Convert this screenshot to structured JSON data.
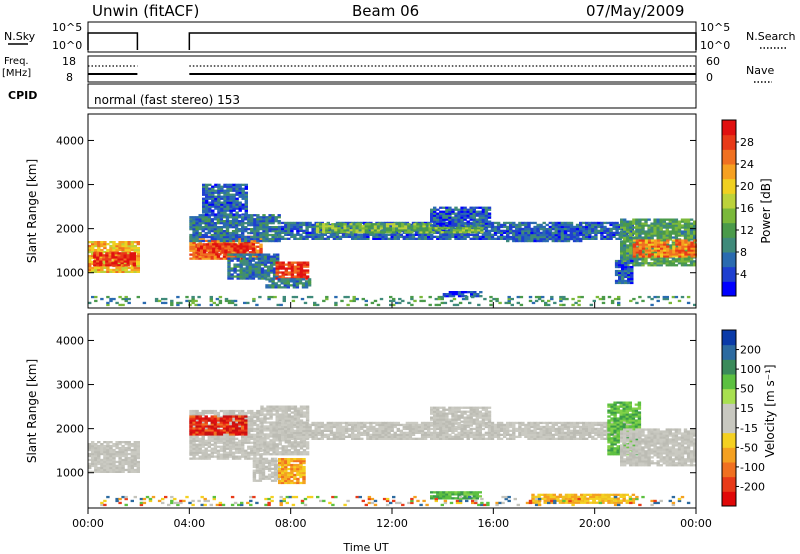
{
  "header": {
    "radar": "Unwin (fitACF)",
    "beam": "Beam 06",
    "date": "07/May/2009"
  },
  "panels": {
    "nsky": {
      "left_label": "N.Sky",
      "right_label": "N.Search",
      "left_ticks": [
        "10^5",
        "10^0"
      ],
      "right_ticks": [
        "10^5",
        "10^0"
      ]
    },
    "freq": {
      "left_label_line1": "Freq.",
      "left_label_line2": "[MHz]",
      "left_ticks": [
        "18",
        "8"
      ],
      "right_label": "Nave",
      "right_ticks": [
        "60",
        "0"
      ]
    },
    "cpid": {
      "label": "CPID",
      "mode_text": "normal (fast stereo) 153"
    }
  },
  "chart_data": [
    {
      "type": "heatmap",
      "panel": "power",
      "ylabel": "Slant Range [km]",
      "xlabel": "Time UT",
      "ylim": [
        200,
        4600
      ],
      "xlim": [
        0,
        24
      ],
      "y_ticks": [
        1000,
        2000,
        3000,
        4000
      ],
      "x_ticks": [
        "00:00",
        "04:00",
        "08:00",
        "12:00",
        "16:00",
        "20:00",
        "00:00"
      ],
      "colorbar": {
        "label": "Power [dB]",
        "ticks": [
          "4",
          "8",
          "12",
          "16",
          "20",
          "24",
          "28"
        ],
        "range": [
          0,
          30
        ],
        "colors": [
          "#0000ff",
          "#1e3fd0",
          "#2a6bb0",
          "#3f8a7a",
          "#4a9a4a",
          "#7ab83a",
          "#bcd23a",
          "#f0d020",
          "#f6a020",
          "#f07020",
          "#e83a18",
          "#e01010"
        ]
      },
      "regions": [
        {
          "t0": 0.0,
          "t1": 1.95,
          "r0": 1000,
          "r1": 1700,
          "v": 20
        },
        {
          "t0": 0.2,
          "t1": 1.8,
          "r0": 1150,
          "r1": 1450,
          "v": 27
        },
        {
          "t0": 4.0,
          "t1": 6.8,
          "r0": 1300,
          "r1": 1800,
          "v": 24
        },
        {
          "t0": 4.3,
          "t1": 6.5,
          "r0": 1400,
          "r1": 1650,
          "v": 27
        },
        {
          "t0": 4.0,
          "t1": 7.5,
          "r0": 1700,
          "r1": 2300,
          "v": 7
        },
        {
          "t0": 4.5,
          "t1": 6.2,
          "r0": 2300,
          "r1": 3000,
          "v": 5
        },
        {
          "t0": 5.5,
          "t1": 7.5,
          "r0": 850,
          "r1": 1400,
          "v": 7
        },
        {
          "t0": 7.4,
          "t1": 8.6,
          "r0": 850,
          "r1": 1250,
          "v": 27
        },
        {
          "t0": 7.0,
          "t1": 8.7,
          "r0": 650,
          "r1": 850,
          "v": 8
        },
        {
          "t0": 7.5,
          "t1": 21.5,
          "r0": 1750,
          "r1": 2150,
          "v": 6
        },
        {
          "t0": 9.0,
          "t1": 15.5,
          "r0": 1900,
          "r1": 2100,
          "v": 13
        },
        {
          "t0": 13.5,
          "t1": 15.8,
          "r0": 2050,
          "r1": 2500,
          "v": 5
        },
        {
          "t0": 16.5,
          "t1": 19.5,
          "r0": 1700,
          "r1": 2000,
          "v": 6
        },
        {
          "t0": 21.0,
          "t1": 24.0,
          "r0": 1150,
          "r1": 2200,
          "v": 11
        },
        {
          "t0": 21.5,
          "t1": 24.0,
          "r0": 1350,
          "r1": 1750,
          "v": 23
        },
        {
          "t0": 20.8,
          "t1": 21.5,
          "r0": 750,
          "r1": 1250,
          "v": 5
        },
        {
          "t0": 14.0,
          "t1": 15.5,
          "r0": 450,
          "r1": 550,
          "v": 4
        },
        {
          "t0": 0.0,
          "t1": 24.0,
          "r0": 250,
          "r1": 450,
          "v": 10,
          "sparse": true
        }
      ]
    },
    {
      "type": "heatmap",
      "panel": "velocity",
      "ylabel": "Slant Range [km]",
      "xlabel": "Time UT",
      "ylim": [
        200,
        4600
      ],
      "xlim": [
        0,
        24
      ],
      "y_ticks": [
        1000,
        2000,
        3000,
        4000
      ],
      "x_ticks": [
        "00:00",
        "04:00",
        "08:00",
        "12:00",
        "16:00",
        "20:00",
        "00:00"
      ],
      "colorbar": {
        "label": "Velocity [m s⁻¹]",
        "ticks": [
          "200",
          "100",
          "50",
          "15",
          "-15",
          "-50",
          "-100",
          "-200"
        ],
        "colors": [
          "#0a3aa8",
          "#2c6aa0",
          "#3a8a5a",
          "#5cc040",
          "#a8e050",
          "#c8c8c0",
          "#c8c8c0",
          "#f4d020",
          "#f4a020",
          "#f07020",
          "#e83a18",
          "#e00808"
        ]
      },
      "regions": [
        {
          "t0": 0.0,
          "t1": 1.95,
          "r0": 1000,
          "r1": 1700,
          "v": "gray"
        },
        {
          "t0": 4.0,
          "t1": 6.8,
          "r0": 1300,
          "r1": 2400,
          "v": "gray"
        },
        {
          "t0": 4.0,
          "t1": 6.2,
          "r0": 1850,
          "r1": 2300,
          "v": "red"
        },
        {
          "t0": 6.8,
          "t1": 8.6,
          "r0": 1400,
          "r1": 2500,
          "v": "gray"
        },
        {
          "t0": 6.5,
          "t1": 7.5,
          "r0": 800,
          "r1": 1300,
          "v": "gray"
        },
        {
          "t0": 7.5,
          "t1": 8.5,
          "r0": 750,
          "r1": 1300,
          "v": "orange"
        },
        {
          "t0": 7.5,
          "t1": 21.5,
          "r0": 1750,
          "r1": 2150,
          "v": "gray"
        },
        {
          "t0": 13.5,
          "t1": 15.8,
          "r0": 2050,
          "r1": 2500,
          "v": "gray"
        },
        {
          "t0": 20.5,
          "t1": 21.8,
          "r0": 1400,
          "r1": 2600,
          "v": "green"
        },
        {
          "t0": 21.0,
          "t1": 24.0,
          "r0": 1150,
          "r1": 2000,
          "v": "gray"
        },
        {
          "t0": 13.5,
          "t1": 15.5,
          "r0": 400,
          "r1": 550,
          "v": "green"
        },
        {
          "t0": 17.5,
          "t1": 21.5,
          "r0": 300,
          "r1": 500,
          "v": "yellow"
        },
        {
          "t0": 0.0,
          "t1": 24.0,
          "r0": 250,
          "r1": 450,
          "v": "mix",
          "sparse": true
        }
      ]
    }
  ]
}
